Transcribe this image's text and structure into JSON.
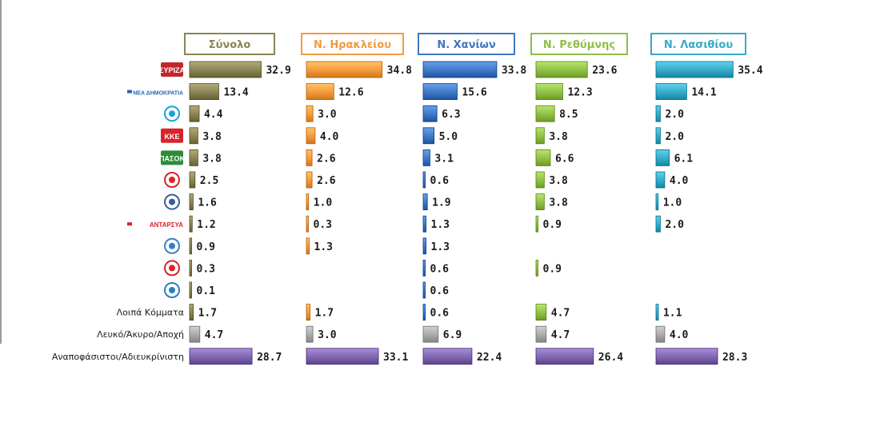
{
  "chart_data": {
    "type": "bar",
    "orientation": "horizontal",
    "categories": [
      "party-1",
      "party-2",
      "party-3",
      "party-4",
      "party-5",
      "party-6",
      "party-7",
      "party-8",
      "party-9",
      "party-10",
      "party-11",
      "Λοιπά Κόμματα",
      "Λευκό/Άκυρο/Αποχή",
      "Αναποφάσιστοι/Αδιευκρίνιστη"
    ],
    "category_labels": {
      "row_11": "Λοιπά Κόμματα",
      "row_12": "Λευκό/Άκυρο/Αποχή",
      "row_13": "Αναποφάσιστοι/Αδιευκρίνιστη"
    },
    "logos": [
      {
        "icon": "syriza-logo-icon",
        "text": "ΣΥΡΙΖΑ",
        "color": "#c0272d"
      },
      {
        "icon": "nea-dimokratia-logo-icon",
        "text": "ΝΕΑ ΔΗΜΟΚΡΑΤΙΑ",
        "color": "#2a66b3"
      },
      {
        "icon": "potami-logo-icon",
        "text": "",
        "color": "#1aa1d8"
      },
      {
        "icon": "kke-logo-icon",
        "text": "ΚΚΕ",
        "color": "#d8232a"
      },
      {
        "icon": "pasok-logo-icon",
        "text": "ΠΑΣΟΚ",
        "color": "#2e8b3a"
      },
      {
        "icon": "golden-dawn-logo-icon",
        "text": "",
        "color": "#d8232a"
      },
      {
        "icon": "anel-logo-icon",
        "text": "",
        "color": "#3a5fa0"
      },
      {
        "icon": "antarsya-logo-icon",
        "text": "ΑΝΤΑΡΣΥΑ",
        "color": "#d8232a"
      },
      {
        "icon": "enosi-kentroon-logo-icon",
        "text": "",
        "color": "#3a7cc8"
      },
      {
        "icon": "green-left-alliance-logo-icon",
        "text": "",
        "color": "#d8232a"
      },
      {
        "icon": "kinima-logo-icon",
        "text": "",
        "color": "#2a80c0"
      }
    ],
    "series": [
      {
        "name": "Σύνολο",
        "color": "#8a8454",
        "values": [
          32.9,
          13.4,
          4.4,
          3.8,
          3.8,
          2.5,
          1.6,
          1.2,
          0.9,
          0.3,
          0.1,
          1.7,
          4.7,
          28.7
        ]
      },
      {
        "name": "Ν. Ηρακλείου",
        "color": "#f39a3e",
        "values": [
          34.8,
          12.6,
          3.0,
          4.0,
          2.6,
          2.6,
          1.0,
          0.3,
          1.3,
          null,
          null,
          1.7,
          3.0,
          33.1
        ]
      },
      {
        "name": "Ν. Χανίων",
        "color": "#3f78c4",
        "values": [
          33.8,
          15.6,
          6.3,
          5.0,
          3.1,
          0.6,
          1.9,
          1.3,
          1.3,
          0.6,
          0.6,
          0.6,
          6.9,
          22.4
        ]
      },
      {
        "name": "Ν. Ρεθύμνης",
        "color": "#8fbf46",
        "values": [
          23.6,
          12.3,
          8.5,
          3.8,
          6.6,
          3.8,
          3.8,
          0.9,
          null,
          0.9,
          null,
          4.7,
          4.7,
          26.4
        ]
      },
      {
        "name": "Ν. Λασιθίου",
        "color": "#36aac6",
        "values": [
          35.4,
          14.1,
          2.0,
          2.0,
          6.1,
          4.0,
          1.0,
          2.0,
          null,
          null,
          null,
          1.1,
          4.0,
          28.3
        ]
      }
    ],
    "special_bar_colors": {
      "blank_invalid": "#a9a9a9",
      "undecided": "#8066b0"
    },
    "header_border_colors": [
      "#8a8454",
      "#f39a3e",
      "#3f78c4",
      "#8fbf46",
      "#36aac6"
    ],
    "header_text_colors": [
      "#8a8454",
      "#f39a3e",
      "#3f78c4",
      "#8fbf46",
      "#36aac6"
    ],
    "grid": false,
    "legend": "none"
  }
}
